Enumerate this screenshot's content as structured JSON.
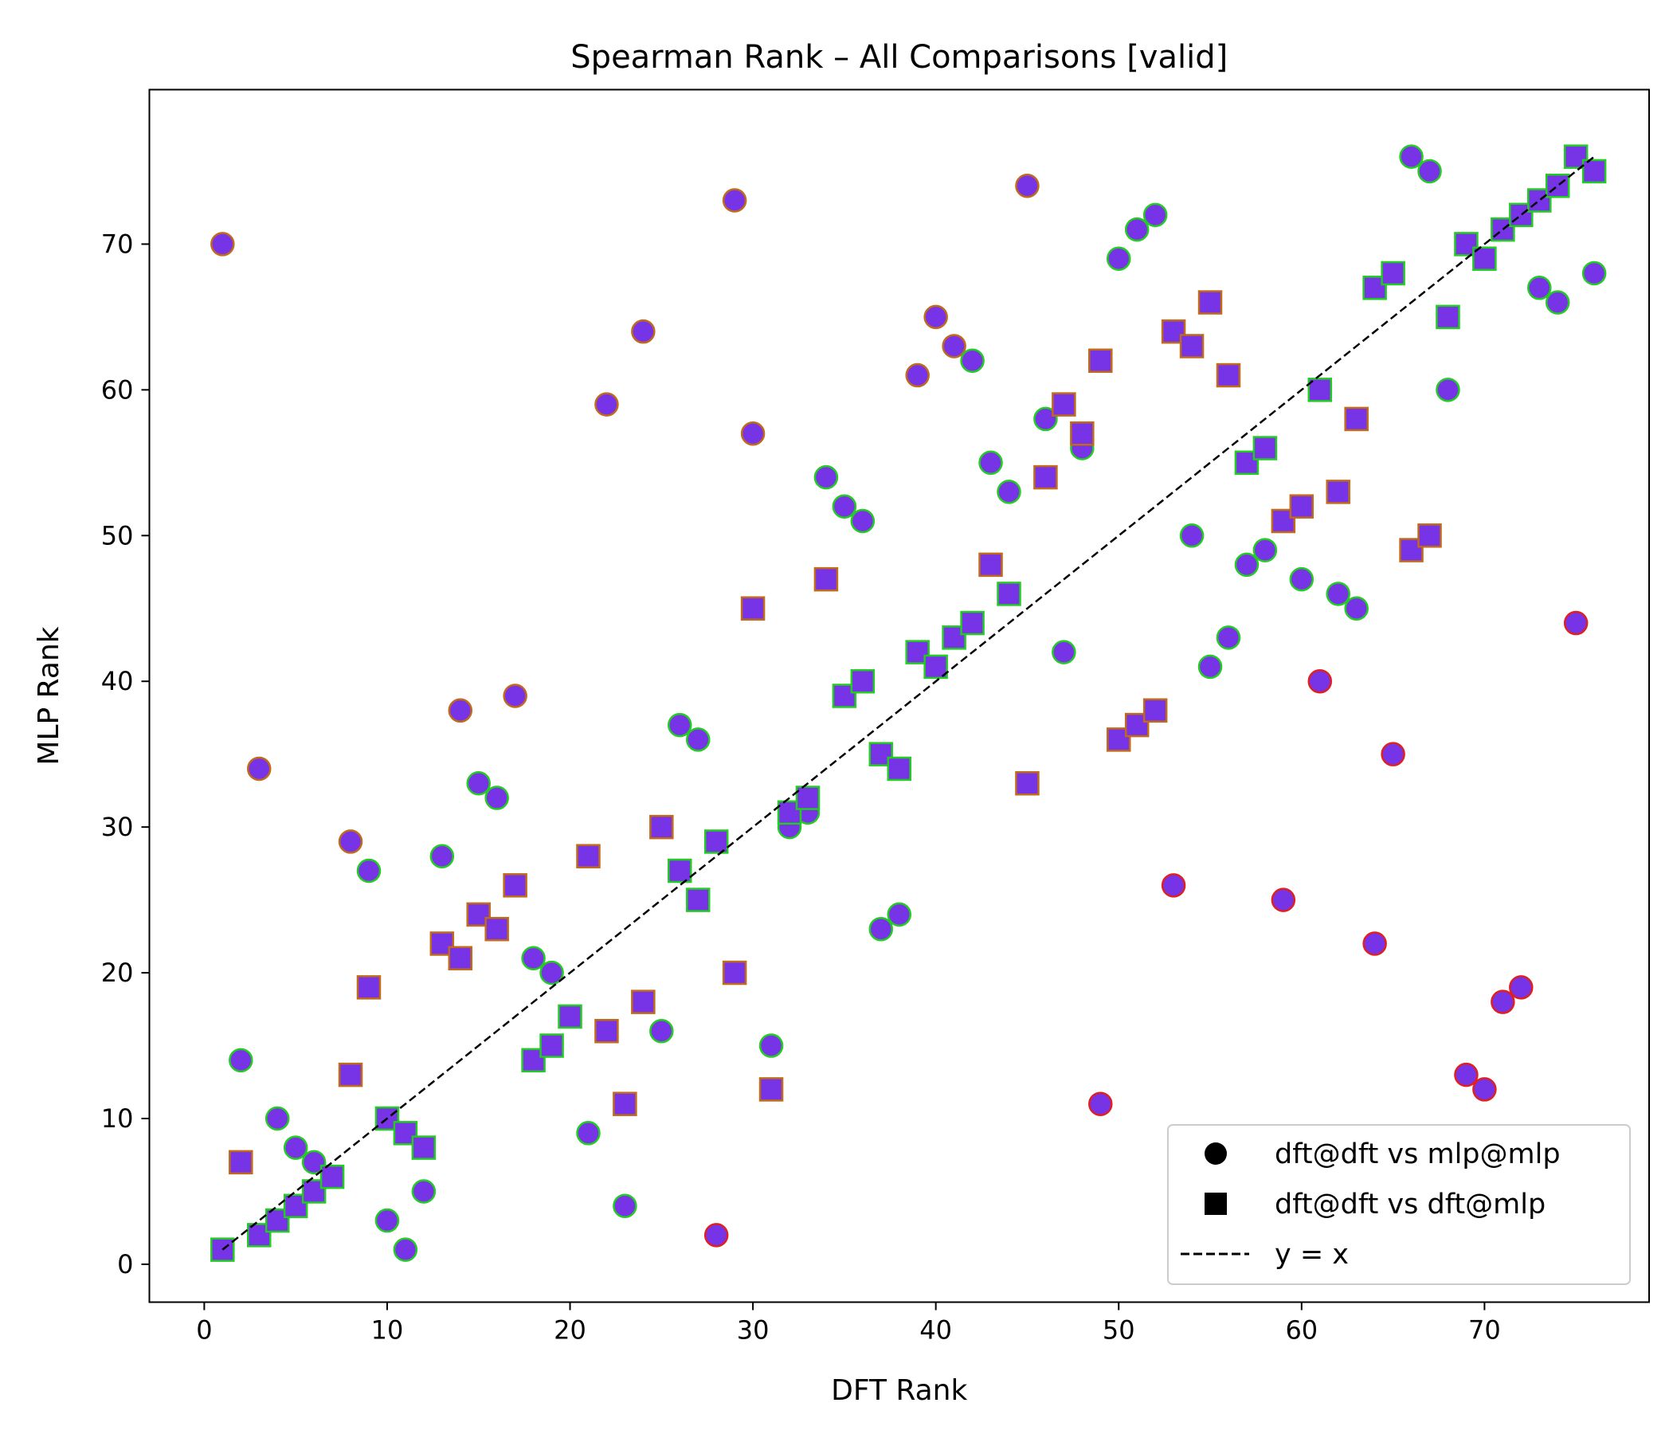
{
  "chart_data": {
    "type": "scatter",
    "title": "Spearman Rank – All Comparisons [valid]",
    "xlabel": "DFT Rank",
    "ylabel": "MLP Rank",
    "xlim": [
      -3,
      79
    ],
    "ylim": [
      -2.6,
      80.6
    ],
    "xticks": [
      0,
      10,
      20,
      30,
      40,
      50,
      60,
      70
    ],
    "yticks": [
      0,
      10,
      20,
      30,
      40,
      50,
      60,
      70
    ],
    "grid": false,
    "legend_position": "lower-right",
    "fill_color": "#7733e6",
    "series": [
      {
        "name": "dft@dft vs mlp@mlp",
        "marker": "circle",
        "points": [
          [
            1,
            70
          ],
          [
            2,
            14
          ],
          [
            3,
            34
          ],
          [
            4,
            10
          ],
          [
            5,
            8
          ],
          [
            6,
            7
          ],
          [
            8,
            29
          ],
          [
            9,
            27
          ],
          [
            10,
            3
          ],
          [
            11,
            1
          ],
          [
            12,
            5
          ],
          [
            13,
            28
          ],
          [
            14,
            38
          ],
          [
            15,
            33
          ],
          [
            16,
            32
          ],
          [
            17,
            39
          ],
          [
            18,
            21
          ],
          [
            19,
            20
          ],
          [
            21,
            9
          ],
          [
            22,
            59
          ],
          [
            23,
            4
          ],
          [
            24,
            64
          ],
          [
            25,
            16
          ],
          [
            26,
            37
          ],
          [
            27,
            36
          ],
          [
            28,
            2
          ],
          [
            29,
            73
          ],
          [
            30,
            57
          ],
          [
            31,
            15
          ],
          [
            32,
            30
          ],
          [
            33,
            31
          ],
          [
            34,
            54
          ],
          [
            35,
            52
          ],
          [
            36,
            51
          ],
          [
            37,
            23
          ],
          [
            38,
            24
          ],
          [
            39,
            61
          ],
          [
            40,
            65
          ],
          [
            41,
            63
          ],
          [
            42,
            62
          ],
          [
            43,
            55
          ],
          [
            44,
            53
          ],
          [
            45,
            74
          ],
          [
            46,
            58
          ],
          [
            47,
            42
          ],
          [
            48,
            56
          ],
          [
            49,
            11
          ],
          [
            50,
            69
          ],
          [
            51,
            71
          ],
          [
            52,
            72
          ],
          [
            53,
            26
          ],
          [
            54,
            50
          ],
          [
            55,
            41
          ],
          [
            56,
            43
          ],
          [
            57,
            48
          ],
          [
            58,
            49
          ],
          [
            59,
            25
          ],
          [
            60,
            47
          ],
          [
            61,
            40
          ],
          [
            62,
            46
          ],
          [
            63,
            45
          ],
          [
            64,
            22
          ],
          [
            65,
            35
          ],
          [
            66,
            76
          ],
          [
            67,
            75
          ],
          [
            68,
            60
          ],
          [
            69,
            13
          ],
          [
            70,
            12
          ],
          [
            71,
            18
          ],
          [
            72,
            19
          ],
          [
            73,
            67
          ],
          [
            74,
            66
          ],
          [
            75,
            44
          ],
          [
            76,
            68
          ]
        ]
      },
      {
        "name": "dft@dft vs dft@mlp",
        "marker": "square",
        "points": [
          [
            1,
            1
          ],
          [
            2,
            7
          ],
          [
            3,
            2
          ],
          [
            4,
            3
          ],
          [
            5,
            4
          ],
          [
            6,
            5
          ],
          [
            7,
            6
          ],
          [
            8,
            13
          ],
          [
            9,
            19
          ],
          [
            10,
            10
          ],
          [
            11,
            9
          ],
          [
            12,
            8
          ],
          [
            13,
            22
          ],
          [
            14,
            21
          ],
          [
            15,
            24
          ],
          [
            16,
            23
          ],
          [
            17,
            26
          ],
          [
            18,
            14
          ],
          [
            19,
            15
          ],
          [
            20,
            17
          ],
          [
            21,
            28
          ],
          [
            22,
            16
          ],
          [
            23,
            11
          ],
          [
            24,
            18
          ],
          [
            25,
            30
          ],
          [
            26,
            27
          ],
          [
            27,
            25
          ],
          [
            28,
            29
          ],
          [
            29,
            20
          ],
          [
            30,
            45
          ],
          [
            31,
            12
          ],
          [
            32,
            31
          ],
          [
            33,
            32
          ],
          [
            34,
            47
          ],
          [
            35,
            39
          ],
          [
            36,
            40
          ],
          [
            37,
            35
          ],
          [
            38,
            34
          ],
          [
            39,
            42
          ],
          [
            40,
            41
          ],
          [
            41,
            43
          ],
          [
            42,
            44
          ],
          [
            43,
            48
          ],
          [
            44,
            46
          ],
          [
            45,
            33
          ],
          [
            46,
            54
          ],
          [
            47,
            59
          ],
          [
            48,
            57
          ],
          [
            49,
            62
          ],
          [
            50,
            36
          ],
          [
            51,
            37
          ],
          [
            52,
            38
          ],
          [
            53,
            64
          ],
          [
            54,
            63
          ],
          [
            55,
            66
          ],
          [
            56,
            61
          ],
          [
            57,
            55
          ],
          [
            58,
            56
          ],
          [
            59,
            51
          ],
          [
            60,
            52
          ],
          [
            61,
            60
          ],
          [
            62,
            53
          ],
          [
            63,
            58
          ],
          [
            64,
            67
          ],
          [
            65,
            68
          ],
          [
            66,
            49
          ],
          [
            67,
            50
          ],
          [
            68,
            65
          ],
          [
            69,
            70
          ],
          [
            70,
            69
          ],
          [
            71,
            71
          ],
          [
            72,
            72
          ],
          [
            73,
            73
          ],
          [
            74,
            74
          ],
          [
            75,
            76
          ],
          [
            76,
            75
          ]
        ]
      },
      {
        "name": "y = x",
        "line": "dashed",
        "x": [
          1,
          76
        ],
        "y": [
          1,
          76
        ]
      }
    ]
  }
}
